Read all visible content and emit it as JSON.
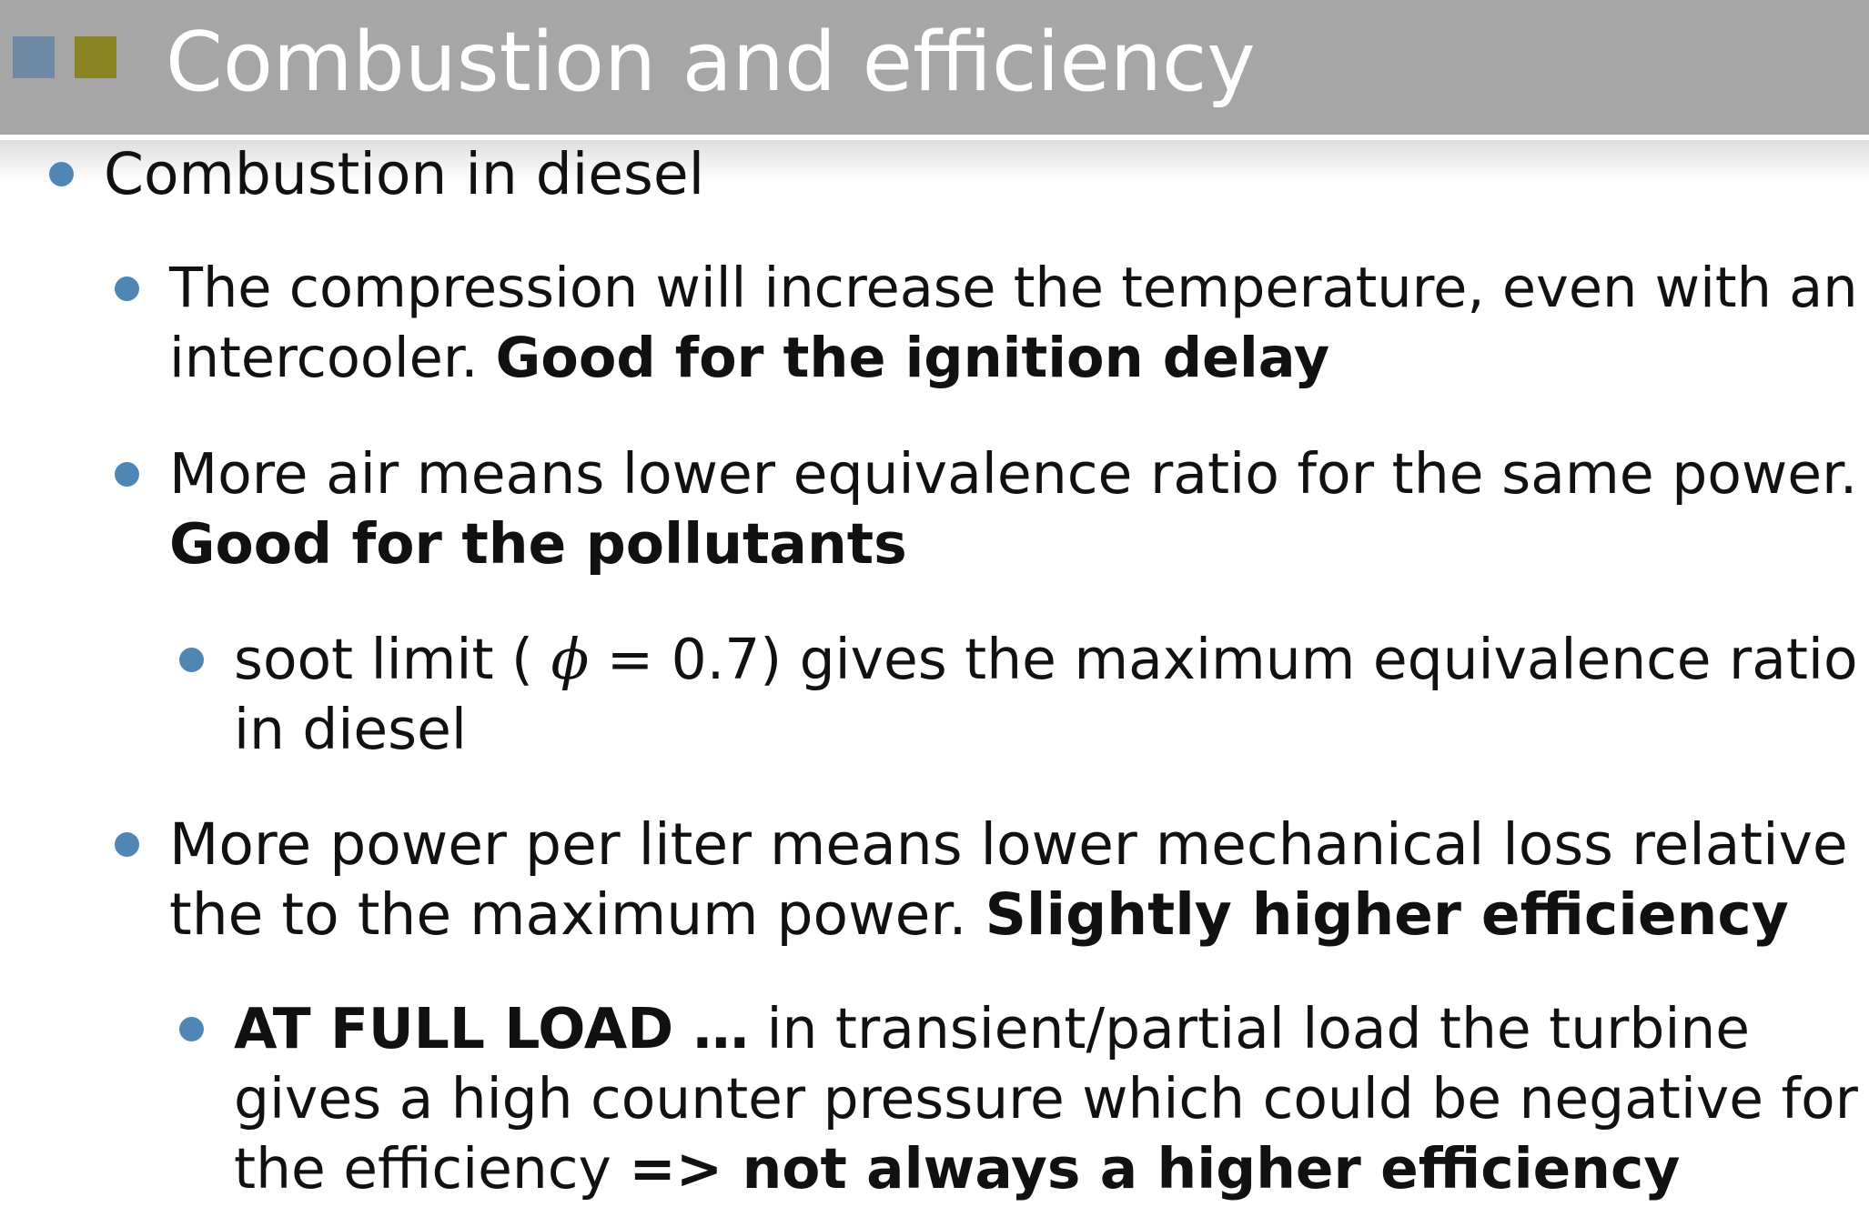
{
  "slide": {
    "title": "Combustion and efficiency",
    "items": [
      {
        "level": 1,
        "lines": [
          [
            "Combustion in diesel"
          ]
        ]
      },
      {
        "level": 2,
        "lines": [
          [
            "The compression will increase the temperature, even with an"
          ],
          [
            "intercooler. ",
            "Good for the ignition delay"
          ]
        ]
      },
      {
        "level": 2,
        "lines": [
          [
            "More air means lower equivalence ratio for the same power."
          ],
          [
            "Good for the pollutants"
          ]
        ]
      },
      {
        "level": 3,
        "lines": [
          [
            "soot limit ( ",
            "ϕ",
            " = 0.7) gives the maximum equivalence ratio"
          ],
          [
            "in diesel"
          ]
        ]
      },
      {
        "level": 2,
        "lines": [
          [
            "More power per liter means lower mechanical loss relative"
          ],
          [
            "the to the maximum power. ",
            "Slightly higher efficiency"
          ]
        ]
      },
      {
        "level": 3,
        "lines": [
          [
            "AT FULL LOAD …",
            " in transient/partial load the turbine"
          ],
          [
            "gives a high counter pressure which could be negative for"
          ],
          [
            "the efficiency ",
            "=> not always a higher efficiency"
          ]
        ]
      }
    ]
  },
  "colors": {
    "title_bar": "#a6a6a6",
    "square_blue": "#6d89a3",
    "square_olive": "#898324",
    "bullet": "#4f86b3"
  }
}
